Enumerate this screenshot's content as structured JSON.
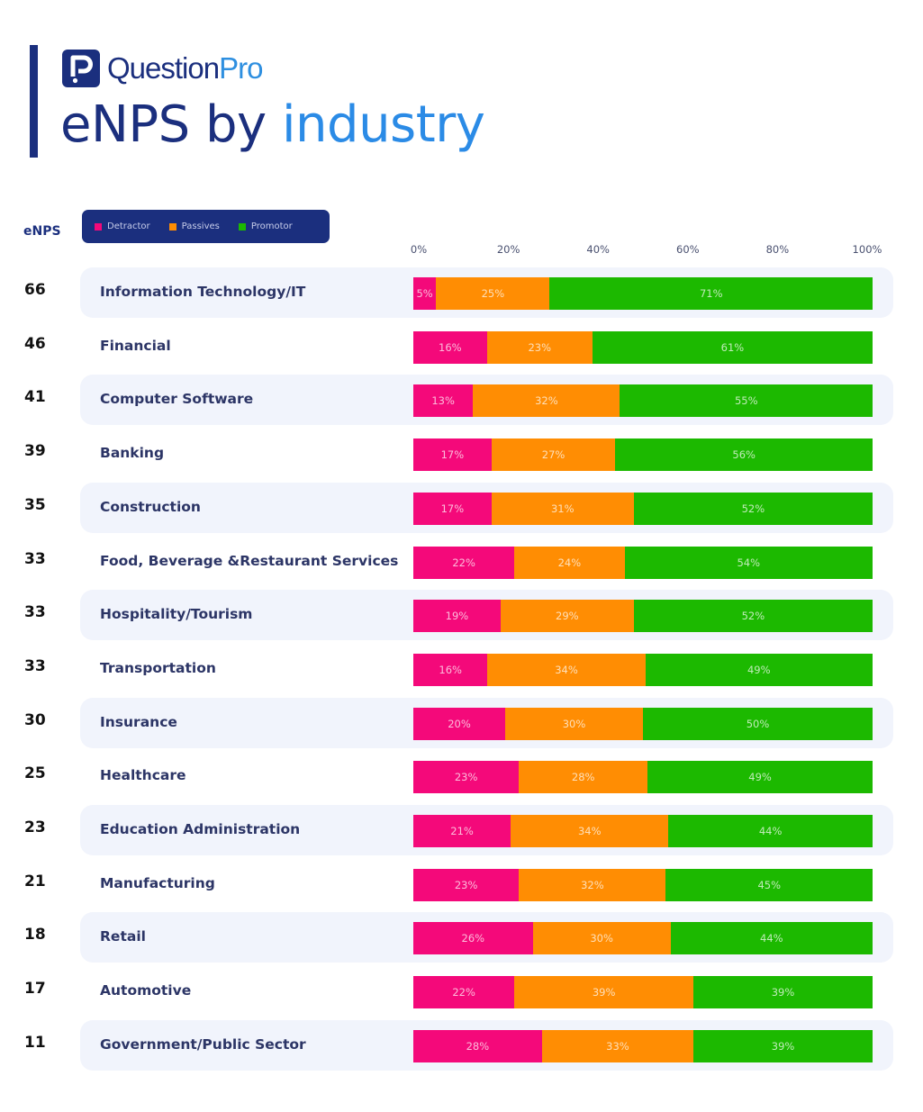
{
  "header": {
    "logo_text_main": "Question",
    "logo_text_accent": "Pro",
    "title_part1": "eNPS by",
    "title_part2": "industry"
  },
  "colors": {
    "brand_navy": "#1b2f7e",
    "brand_blue": "#2b8be6",
    "detractor": "#f4097a",
    "passives": "#ff8d03",
    "promotor": "#1cb900"
  },
  "chart_data": {
    "type": "bar",
    "orientation": "horizontal",
    "stacked": true,
    "title": "eNPS by industry",
    "enps_column_label": "eNPS",
    "xlim": [
      0,
      100
    ],
    "x_ticks": [
      "0%",
      "20%",
      "40%",
      "60%",
      "80%",
      "100%"
    ],
    "legend_position": "top-left",
    "legend": [
      "Detractor",
      "Passives",
      "Promotor"
    ],
    "categories": [
      "Information Technology/IT",
      "Financial",
      "Computer Software",
      "Banking",
      "Construction",
      "Food, Beverage &Restaurant Services",
      "Hospitality/Tourism",
      "Transportation",
      "Insurance",
      "Healthcare",
      "Education Administration",
      "Manufacturing",
      "Retail",
      "Automotive",
      "Government/Public Sector"
    ],
    "enps": [
      "66",
      "46",
      "41",
      "39",
      "35",
      "33",
      "33",
      "33",
      "30",
      "25",
      "23",
      "21",
      "18",
      "17",
      "11"
    ],
    "series": [
      {
        "name": "Detractor",
        "values": [
          5,
          16,
          13,
          17,
          17,
          22,
          19,
          16,
          20,
          23,
          21,
          23,
          26,
          22,
          28
        ]
      },
      {
        "name": "Passives",
        "values": [
          25,
          23,
          32,
          27,
          31,
          24,
          29,
          34,
          30,
          28,
          34,
          32,
          30,
          39,
          33
        ]
      },
      {
        "name": "Promotor",
        "values": [
          71,
          61,
          55,
          56,
          52,
          54,
          52,
          49,
          50,
          49,
          44,
          45,
          44,
          39,
          39
        ]
      }
    ]
  }
}
